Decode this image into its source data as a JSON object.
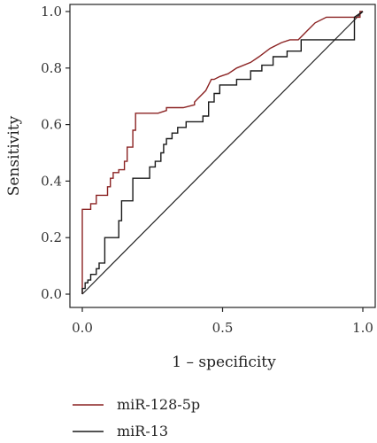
{
  "chart_data": {
    "type": "line",
    "title": "",
    "xlabel": "1 – specificity",
    "ylabel": "Sensitivity",
    "xlim": [
      0,
      1
    ],
    "ylim": [
      0,
      1
    ],
    "xticks": [
      "0.0",
      "0.5",
      "1.0"
    ],
    "yticks": [
      "0.0",
      "0.2",
      "0.4",
      "0.6",
      "0.8",
      "1.0"
    ],
    "x_tick_values": [
      0,
      0.5,
      1
    ],
    "y_tick_values": [
      0,
      0.2,
      0.4,
      0.6,
      0.8,
      1
    ],
    "grid": false,
    "legend_position": "bottom-left",
    "reference_line": true,
    "series": [
      {
        "name": "miR-128-5p",
        "color": "#8b2323",
        "x": [
          0,
          0,
          0.03,
          0.03,
          0.05,
          0.05,
          0.09,
          0.09,
          0.1,
          0.1,
          0.11,
          0.11,
          0.13,
          0.13,
          0.15,
          0.15,
          0.16,
          0.16,
          0.18,
          0.18,
          0.19,
          0.19,
          0.27,
          0.3,
          0.3,
          0.36,
          0.4,
          0.4,
          0.42,
          0.44,
          0.46,
          0.47,
          0.49,
          0.52,
          0.55,
          0.6,
          0.63,
          0.67,
          0.71,
          0.74,
          0.77,
          0.8,
          0.83,
          0.87,
          0.99,
          0.99,
          1
        ],
        "y": [
          0,
          0.3,
          0.3,
          0.32,
          0.32,
          0.35,
          0.35,
          0.38,
          0.38,
          0.41,
          0.41,
          0.43,
          0.43,
          0.44,
          0.44,
          0.47,
          0.47,
          0.52,
          0.52,
          0.58,
          0.58,
          0.64,
          0.64,
          0.65,
          0.66,
          0.66,
          0.67,
          0.68,
          0.7,
          0.72,
          0.76,
          0.76,
          0.77,
          0.78,
          0.8,
          0.82,
          0.84,
          0.87,
          0.89,
          0.9,
          0.9,
          0.93,
          0.96,
          0.98,
          0.98,
          1,
          1
        ]
      },
      {
        "name": "miR-13",
        "color": "#1a1a1a",
        "x": [
          0,
          0,
          0.01,
          0.01,
          0.02,
          0.02,
          0.03,
          0.03,
          0.05,
          0.05,
          0.06,
          0.06,
          0.08,
          0.08,
          0.13,
          0.13,
          0.14,
          0.14,
          0.18,
          0.18,
          0.24,
          0.24,
          0.26,
          0.26,
          0.28,
          0.28,
          0.29,
          0.29,
          0.3,
          0.3,
          0.32,
          0.32,
          0.34,
          0.34,
          0.37,
          0.37,
          0.43,
          0.43,
          0.45,
          0.45,
          0.47,
          0.47,
          0.49,
          0.49,
          0.55,
          0.55,
          0.6,
          0.6,
          0.64,
          0.64,
          0.68,
          0.68,
          0.73,
          0.73,
          0.78,
          0.78,
          0.97,
          0.97,
          1
        ],
        "y": [
          0,
          0.02,
          0.02,
          0.04,
          0.04,
          0.05,
          0.05,
          0.07,
          0.07,
          0.09,
          0.09,
          0.11,
          0.11,
          0.2,
          0.2,
          0.26,
          0.26,
          0.33,
          0.33,
          0.41,
          0.41,
          0.45,
          0.45,
          0.47,
          0.47,
          0.5,
          0.5,
          0.53,
          0.53,
          0.55,
          0.55,
          0.57,
          0.57,
          0.59,
          0.59,
          0.61,
          0.61,
          0.63,
          0.63,
          0.68,
          0.68,
          0.71,
          0.71,
          0.74,
          0.74,
          0.76,
          0.76,
          0.79,
          0.79,
          0.81,
          0.81,
          0.84,
          0.84,
          0.86,
          0.86,
          0.9,
          0.9,
          0.98,
          1
        ]
      }
    ]
  }
}
